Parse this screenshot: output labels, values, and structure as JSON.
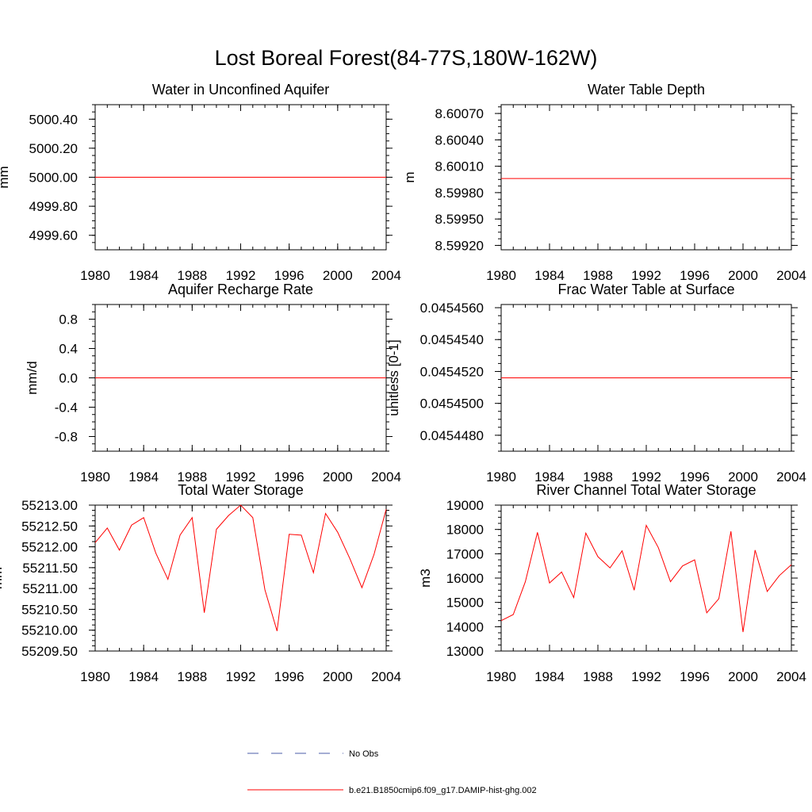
{
  "page_title": "Lost Boreal Forest(84-77S,180W-162W)",
  "legend": [
    {
      "label": "No Obs",
      "color": "#4b5ea8",
      "dash": true
    },
    {
      "label": "b.e21.B1850cmip6.f09_g17.DAMIP-hist-ghg.002",
      "color": "#ff0000",
      "dash": false
    }
  ],
  "chart_data": [
    {
      "type": "line",
      "title": "Water in Unconfined Aquifer",
      "ylabel": "mm",
      "xlim": [
        1980,
        2004
      ],
      "ylim": [
        4999.5,
        5000.5
      ],
      "xticks": [
        1980,
        1984,
        1988,
        1992,
        1996,
        2000,
        2004
      ],
      "xtick_labels": [
        "1980",
        "1984",
        "1988",
        "1992",
        "1996",
        "2000",
        "2004"
      ],
      "yticks": [
        4999.6,
        4999.8,
        5000.0,
        5000.2,
        5000.4
      ],
      "ytick_labels": [
        "4999.60",
        "4999.80",
        "5000.00",
        "5000.20",
        "5000.40"
      ],
      "series": [
        {
          "color": "#ff0000",
          "x": [
            1980,
            2004
          ],
          "y": [
            5000.0,
            5000.0
          ]
        }
      ]
    },
    {
      "type": "line",
      "title": "Water Table Depth",
      "ylabel": "m",
      "xlim": [
        1980,
        2004
      ],
      "ylim": [
        8.59915,
        8.6008
      ],
      "xticks": [
        1980,
        1984,
        1988,
        1992,
        1996,
        2000,
        2004
      ],
      "xtick_labels": [
        "1980",
        "1984",
        "1988",
        "1992",
        "1996",
        "2000",
        "2004"
      ],
      "yticks": [
        8.5992,
        8.5995,
        8.5998,
        8.6001,
        8.6004,
        8.6007
      ],
      "ytick_labels": [
        "8.59920",
        "8.59950",
        "8.59980",
        "8.60010",
        "8.60040",
        "8.60070"
      ],
      "series": [
        {
          "color": "#ff0000",
          "x": [
            1980,
            2004
          ],
          "y": [
            8.59996,
            8.59996
          ]
        }
      ]
    },
    {
      "type": "line",
      "title": "Aquifer Recharge Rate",
      "ylabel": "mm/d",
      "xlim": [
        1980,
        2004
      ],
      "ylim": [
        -1.0,
        1.0
      ],
      "xticks": [
        1980,
        1984,
        1988,
        1992,
        1996,
        2000,
        2004
      ],
      "xtick_labels": [
        "1980",
        "1984",
        "1988",
        "1992",
        "1996",
        "2000",
        "2004"
      ],
      "yticks": [
        -0.8,
        -0.4,
        0.0,
        0.4,
        0.8
      ],
      "ytick_labels": [
        "-0.8",
        "-0.4",
        "0.0",
        "0.4",
        "0.8"
      ],
      "series": [
        {
          "color": "#ff0000",
          "x": [
            1980,
            2004
          ],
          "y": [
            0.0,
            0.0
          ]
        }
      ]
    },
    {
      "type": "line",
      "title": "Frac Water Table at Surface",
      "ylabel": "unitless [0-1]",
      "xlim": [
        1980,
        2004
      ],
      "ylim": [
        0.045447,
        0.0454562
      ],
      "xticks": [
        1980,
        1984,
        1988,
        1992,
        1996,
        2000,
        2004
      ],
      "xtick_labels": [
        "1980",
        "1984",
        "1988",
        "1992",
        "1996",
        "2000",
        "2004"
      ],
      "yticks": [
        0.045448,
        0.04545,
        0.045452,
        0.045454,
        0.045456
      ],
      "ytick_labels": [
        "0.0454480",
        "0.0454500",
        "0.0454520",
        "0.0454540",
        "0.0454560"
      ],
      "series": [
        {
          "color": "#ff0000",
          "x": [
            1980,
            2004
          ],
          "y": [
            0.0454516,
            0.0454516
          ]
        }
      ]
    },
    {
      "type": "line",
      "title": "Total Water Storage",
      "ylabel": "mm",
      "xlim": [
        1980,
        2004
      ],
      "ylim": [
        55209.5,
        55213.0
      ],
      "xticks": [
        1980,
        1984,
        1988,
        1992,
        1996,
        2000,
        2004
      ],
      "xtick_labels": [
        "1980",
        "1984",
        "1988",
        "1992",
        "1996",
        "2000",
        "2004"
      ],
      "yticks": [
        55209.5,
        55210.0,
        55210.5,
        55211.0,
        55211.5,
        55212.0,
        55212.5,
        55213.0
      ],
      "ytick_labels": [
        "55209.50",
        "55210.00",
        "55210.50",
        "55211.00",
        "55211.50",
        "55212.00",
        "55212.50",
        "55213.00"
      ],
      "series": [
        {
          "color": "#ff0000",
          "x": [
            1980,
            1981,
            1982,
            1983,
            1984,
            1985,
            1986,
            1987,
            1988,
            1989,
            1990,
            1991,
            1992,
            1993,
            1994,
            1995,
            1996,
            1997,
            1998,
            1999,
            2000,
            2001,
            2002,
            2003,
            2004
          ],
          "y": [
            55212.1,
            55212.45,
            55211.92,
            55212.52,
            55212.7,
            55211.85,
            55211.22,
            55212.28,
            55212.7,
            55210.42,
            55212.42,
            55212.75,
            55213.0,
            55212.7,
            55210.97,
            55209.98,
            55212.3,
            55212.28,
            55211.38,
            55212.8,
            55212.35,
            55211.72,
            55211.02,
            55211.82,
            55212.9
          ]
        }
      ]
    },
    {
      "type": "line",
      "title": "River Channel Total Water Storage",
      "ylabel": "m3",
      "xlim": [
        1980,
        2004
      ],
      "ylim": [
        13000,
        19000
      ],
      "xticks": [
        1980,
        1984,
        1988,
        1992,
        1996,
        2000,
        2004
      ],
      "xtick_labels": [
        "1980",
        "1984",
        "1988",
        "1992",
        "1996",
        "2000",
        "2004"
      ],
      "yticks": [
        13000,
        14000,
        15000,
        16000,
        17000,
        18000,
        19000
      ],
      "ytick_labels": [
        "13000",
        "14000",
        "15000",
        "16000",
        "17000",
        "18000",
        "19000"
      ],
      "series": [
        {
          "color": "#ff0000",
          "x": [
            1980,
            1981,
            1982,
            1983,
            1984,
            1985,
            1986,
            1987,
            1988,
            1989,
            1990,
            1991,
            1992,
            1993,
            1994,
            1995,
            1996,
            1997,
            1998,
            1999,
            2000,
            2001,
            2002,
            2003,
            2004
          ],
          "y": [
            14250,
            14500,
            15850,
            17880,
            15800,
            16250,
            15200,
            17850,
            16880,
            16420,
            17120,
            15500,
            18170,
            17250,
            15850,
            16500,
            16750,
            14570,
            15150,
            17920,
            13780,
            17150,
            15450,
            16100,
            16550
          ]
        }
      ]
    }
  ]
}
